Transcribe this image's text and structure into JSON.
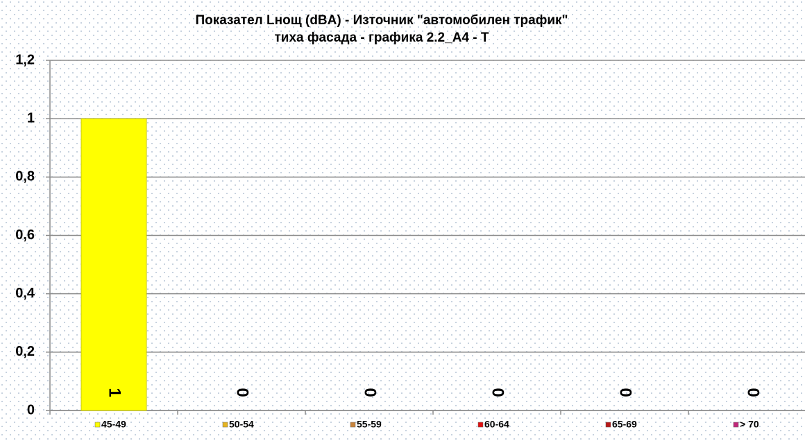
{
  "chart_data": {
    "type": "bar",
    "title": [
      "Показател Lнощ (dBA) - Източник \"автомобилен трафик\"",
      "тиха фасада - графика 2.2_A4 - T"
    ],
    "categories": [
      "45-49",
      "50-54",
      "55-59",
      "60-64",
      "65-69",
      "> 70"
    ],
    "values": [
      1,
      0,
      0,
      0,
      0,
      0
    ],
    "colors": [
      "#ffff00",
      "#e6b422",
      "#c8843c",
      "#e01010",
      "#b81818",
      "#c0287a"
    ],
    "ylim": [
      0,
      1.2
    ],
    "yticks": [
      0,
      {
        "value": 0.2,
        "label": "0,2"
      },
      {
        "value": 0.4,
        "label": "0,4"
      },
      {
        "value": 0.6,
        "label": "0,6"
      },
      {
        "value": 0.8,
        "label": "0,8"
      },
      1,
      {
        "value": 1.2,
        "label": "1,2"
      }
    ],
    "grid": true
  }
}
